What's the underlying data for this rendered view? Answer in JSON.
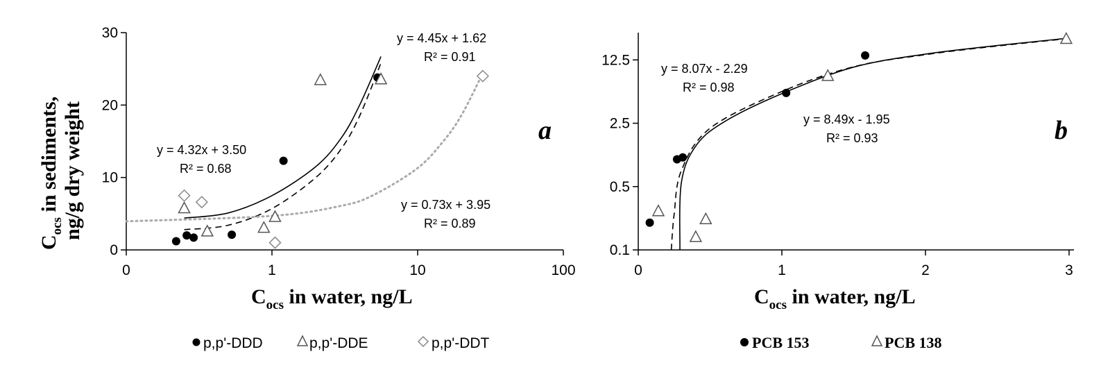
{
  "chart_data": [
    {
      "type": "scatter",
      "panel_label": "a",
      "x_scale": "log",
      "xlim": [
        0.1,
        100
      ],
      "x_ticks": [
        "0",
        "1",
        "10",
        "100"
      ],
      "ylim": [
        0,
        30
      ],
      "y_ticks": [
        "0",
        "10",
        "20",
        "30"
      ],
      "xlabel": {
        "main": "C",
        "sub": "ocs",
        "rest": " in water, ng/L"
      },
      "ylabel": {
        "main": "C",
        "sub": "ocs",
        "rest": " in sediments,",
        "line2": "ng/g dry weight"
      },
      "legend": [
        "p,p'-DDD",
        "p,p'-DDE",
        "p,p'-DDT"
      ],
      "series": [
        {
          "name": "p,p'-DDD",
          "marker": "filled-circle",
          "color": "#000000",
          "points": [
            [
              0.22,
              1.2
            ],
            [
              0.26,
              2.0
            ],
            [
              0.29,
              1.7
            ],
            [
              0.53,
              2.1
            ],
            [
              1.2,
              12.3
            ],
            [
              5.3,
              23.8
            ]
          ],
          "trend": {
            "equation": "y = 4.32x + 3.50",
            "r2": "R² = 0.68",
            "style": "solid",
            "color": "#000000",
            "curve": [
              [
                0.25,
                4.4
              ],
              [
                0.5,
                5.1
              ],
              [
                1.0,
                7.5
              ],
              [
                2.0,
                11.5
              ],
              [
                3.0,
                15.5
              ],
              [
                4.0,
                20.0
              ],
              [
                5.6,
                26.7
              ]
            ]
          }
        },
        {
          "name": "p,p'-DDE",
          "marker": "open-triangle",
          "color": "#555555",
          "points": [
            [
              0.25,
              5.8
            ],
            [
              0.36,
              2.6
            ],
            [
              0.88,
              3.1
            ],
            [
              1.05,
              4.6
            ],
            [
              2.15,
              23.5
            ],
            [
              5.6,
              23.6
            ]
          ],
          "trend": {
            "equation": "y = 4.45x + 1.62",
            "r2": "R² = 0.91",
            "style": "dashed",
            "color": "#000000",
            "curve": [
              [
                0.25,
                2.8
              ],
              [
                0.5,
                3.4
              ],
              [
                1.0,
                5.7
              ],
              [
                2.0,
                10.0
              ],
              [
                3.0,
                14.0
              ],
              [
                4.0,
                18.5
              ],
              [
                5.6,
                25.8
              ]
            ]
          }
        },
        {
          "name": "p,p'-DDT",
          "marker": "open-diamond",
          "color": "#888888",
          "points": [
            [
              0.25,
              7.5
            ],
            [
              0.33,
              6.6
            ],
            [
              1.05,
              1.0
            ],
            [
              28.0,
              24.0
            ]
          ],
          "trend": {
            "equation": "y = 0.73x + 3.95",
            "r2": "R² = 0.89",
            "style": "dotted",
            "color": "#aaaaaa",
            "curve": [
              [
                0.1,
                3.95
              ],
              [
                1.0,
                4.7
              ],
              [
                3.0,
                6.1
              ],
              [
                5.0,
                7.6
              ],
              [
                10.0,
                11.3
              ],
              [
                15.0,
                15.0
              ],
              [
                20.0,
                18.6
              ],
              [
                28.0,
                24.4
              ]
            ]
          }
        }
      ]
    },
    {
      "type": "scatter",
      "panel_label": "b",
      "y_scale": "log",
      "xlim": [
        0,
        3
      ],
      "x_ticks": [
        "0",
        "1",
        "2",
        "3"
      ],
      "ylim": [
        0.1,
        25
      ],
      "y_ticks": [
        "0.1",
        "0.5",
        "2.5",
        "12.5"
      ],
      "xlabel": {
        "main": "C",
        "sub": "ocs",
        "rest": " in water, ng/L"
      },
      "legend": [
        "PCB 153",
        "PCB 138"
      ],
      "series": [
        {
          "name": "PCB 153",
          "marker": "filled-circle",
          "color": "#000000",
          "points": [
            [
              0.08,
              0.2
            ],
            [
              0.27,
              1.0
            ],
            [
              0.31,
              1.05
            ],
            [
              1.03,
              5.4
            ],
            [
              1.58,
              14.0
            ]
          ],
          "trend": {
            "equation": "y = 8.49x - 1.95",
            "r2": "R² = 0.93",
            "style": "solid",
            "color": "#000000",
            "curve": [
              [
                0.29,
                0.1
              ],
              [
                0.3,
                0.55
              ],
              [
                0.4,
                1.4
              ],
              [
                0.6,
                2.6
              ],
              [
                1.0,
                5.3
              ],
              [
                1.5,
                10.4
              ],
              [
                2.0,
                14.5
              ],
              [
                2.5,
                18.0
              ],
              [
                2.97,
                21.5
              ]
            ]
          }
        },
        {
          "name": "PCB 138",
          "marker": "open-triangle",
          "color": "#555555",
          "points": [
            [
              0.14,
              0.27
            ],
            [
              0.4,
              0.14
            ],
            [
              0.47,
              0.22
            ],
            [
              1.32,
              8.4
            ],
            [
              2.98,
              21.5
            ]
          ],
          "trend": {
            "equation": "y = 8.07x - 2.29",
            "r2": "R² = 0.98",
            "style": "dashed",
            "color": "#000000",
            "curve": [
              [
                0.23,
                0.1
              ],
              [
                0.25,
                0.25
              ],
              [
                0.3,
                0.75
              ],
              [
                0.5,
                2.2
              ],
              [
                1.0,
                5.6
              ],
              [
                1.5,
                10.5
              ],
              [
                2.0,
                14.3
              ],
              [
                2.5,
                17.8
              ],
              [
                2.97,
                21.3
              ]
            ]
          }
        }
      ]
    }
  ]
}
